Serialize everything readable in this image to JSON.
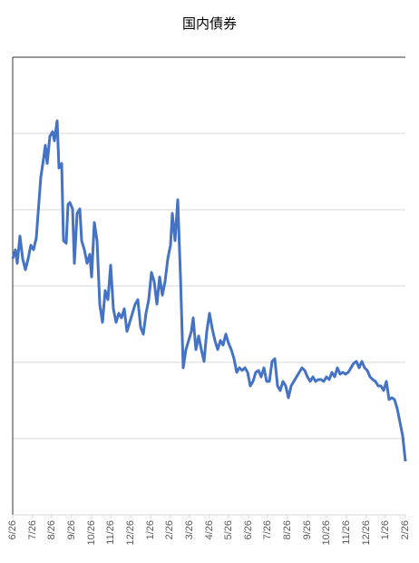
{
  "chart_data": {
    "type": "line",
    "title": "国内債券",
    "xlim": [
      0,
      433
    ],
    "xticks": [
      {
        "value": 0,
        "label": "6/26"
      },
      {
        "value": 22,
        "label": "7/26"
      },
      {
        "value": 43,
        "label": "8/26"
      },
      {
        "value": 65,
        "label": "9/26"
      },
      {
        "value": 87,
        "label": "10/26"
      },
      {
        "value": 108,
        "label": "11/26"
      },
      {
        "value": 130,
        "label": "12/26"
      },
      {
        "value": 152,
        "label": "1/26"
      },
      {
        "value": 173,
        "label": "2/26"
      },
      {
        "value": 195,
        "label": "3/26"
      },
      {
        "value": 217,
        "label": "4/26"
      },
      {
        "value": 238,
        "label": "5/26"
      },
      {
        "value": 260,
        "label": "6/26"
      },
      {
        "value": 281,
        "label": "7/26"
      },
      {
        "value": 303,
        "label": "8/26"
      },
      {
        "value": 325,
        "label": "9/26"
      },
      {
        "value": 346,
        "label": "10/26"
      },
      {
        "value": 368,
        "label": "11/26"
      },
      {
        "value": 390,
        "label": "12/26"
      },
      {
        "value": 411,
        "label": "1/26"
      },
      {
        "value": 433,
        "label": "2/26"
      }
    ],
    "ylim": [
      0,
      504
    ],
    "yticks": [
      84,
      168,
      252,
      336,
      420
    ],
    "grid": true,
    "ytick_labels": false,
    "x": [
      0,
      3,
      5,
      8,
      11,
      14,
      17,
      20,
      23,
      26,
      28,
      31,
      34,
      36,
      38,
      41,
      44,
      46,
      49,
      51,
      54,
      56,
      59,
      61,
      63,
      66,
      68,
      71,
      74,
      76,
      79,
      82,
      85,
      87,
      90,
      93,
      96,
      99,
      102,
      105,
      108,
      111,
      114,
      117,
      120,
      123,
      126,
      129,
      132,
      135,
      138,
      141,
      144,
      147,
      150,
      153,
      156,
      159,
      162,
      165,
      168,
      171,
      174,
      176,
      179,
      182,
      185,
      188,
      191,
      194,
      197,
      199,
      202,
      205,
      208,
      211,
      214,
      217,
      220,
      223,
      226,
      229,
      232,
      235,
      238,
      241,
      244,
      247,
      250,
      253,
      256,
      259,
      262,
      265,
      268,
      271,
      274,
      277,
      280,
      283,
      286,
      289,
      292,
      295,
      298,
      301,
      304,
      307,
      310,
      313,
      316,
      319,
      322,
      325,
      328,
      331,
      334,
      337,
      340,
      343,
      346,
      349,
      352,
      355,
      358,
      361,
      364,
      367,
      370,
      373,
      376,
      379,
      382,
      385,
      388,
      391,
      394,
      397,
      400,
      403,
      406,
      409,
      412,
      415,
      418,
      421,
      424,
      427,
      430,
      433
    ],
    "series": [
      {
        "name": "国内債券",
        "color": "#4472c4",
        "values": [
          282,
          292,
          277,
          307,
          282,
          270,
          282,
          297,
          292,
          305,
          332,
          372,
          392,
          407,
          387,
          417,
          422,
          412,
          434,
          382,
          387,
          302,
          299,
          342,
          344,
          337,
          277,
          332,
          337,
          302,
          292,
          277,
          287,
          262,
          322,
          302,
          232,
          212,
          247,
          237,
          275,
          227,
          212,
          222,
          217,
          227,
          202,
          212,
          222,
          232,
          237,
          207,
          199,
          222,
          237,
          267,
          257,
          232,
          262,
          242,
          257,
          282,
          297,
          332,
          302,
          347,
          262,
          162,
          182,
          192,
          202,
          217,
          182,
          197,
          182,
          169,
          202,
          222,
          205,
          192,
          182,
          192,
          187,
          199,
          189,
          182,
          172,
          157,
          162,
          159,
          162,
          157,
          142,
          147,
          157,
          159,
          152,
          162,
          147,
          147,
          169,
          172,
          142,
          137,
          147,
          142,
          129,
          142,
          147,
          152,
          157,
          162,
          159,
          152,
          147,
          152,
          147,
          149,
          149,
          147,
          152,
          149,
          157,
          152,
          162,
          155,
          157,
          155,
          157,
          162,
          167,
          169,
          162,
          169,
          162,
          159,
          152,
          149,
          147,
          142,
          142,
          137,
          147,
          127,
          129,
          127,
          117,
          102,
          87,
          59
        ]
      }
    ]
  }
}
